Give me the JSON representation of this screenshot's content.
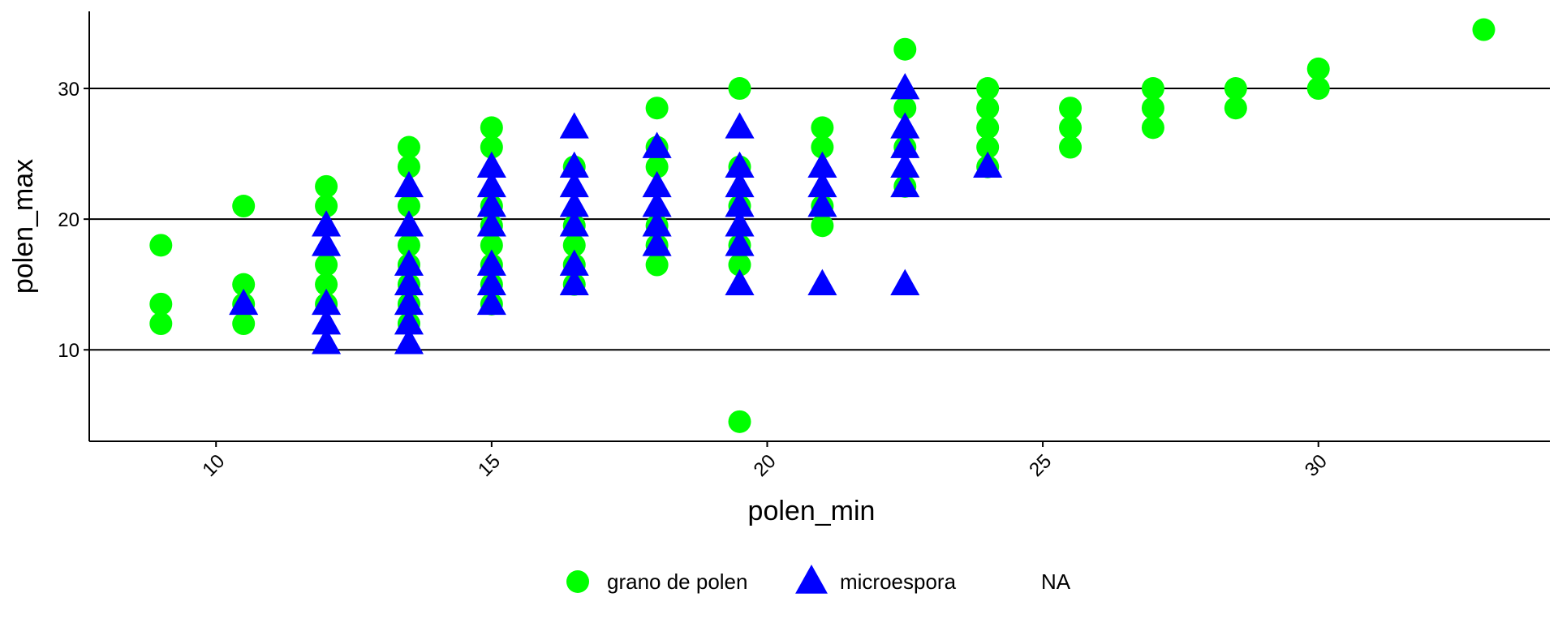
{
  "chart_data": {
    "type": "scatter",
    "title": "",
    "xlabel": "polen_min",
    "ylabel": "polen_max",
    "xlim": [
      7.7,
      34.2
    ],
    "ylim": [
      3.0,
      35.9
    ],
    "xticks": [
      10,
      15,
      20,
      25,
      30
    ],
    "yticks": [
      10,
      20,
      30
    ],
    "grid": "horizontal-major",
    "legend": "bottom",
    "series": [
      {
        "name": "grano de polen",
        "marker": "circle",
        "color": "#00FF00",
        "points": [
          [
            9,
            18
          ],
          [
            9,
            13.5
          ],
          [
            9,
            12
          ],
          [
            10.5,
            21
          ],
          [
            10.5,
            15
          ],
          [
            10.5,
            13.5
          ],
          [
            10.5,
            12
          ],
          [
            12,
            22.5
          ],
          [
            12,
            21
          ],
          [
            12,
            16.5
          ],
          [
            12,
            15
          ],
          [
            12,
            13.5
          ],
          [
            13.5,
            25.5
          ],
          [
            13.5,
            24
          ],
          [
            13.5,
            21
          ],
          [
            13.5,
            18
          ],
          [
            13.5,
            16.5
          ],
          [
            13.5,
            15
          ],
          [
            13.5,
            13.5
          ],
          [
            13.5,
            12
          ],
          [
            15,
            27
          ],
          [
            15,
            25.5
          ],
          [
            15,
            21
          ],
          [
            15,
            19.5
          ],
          [
            15,
            18
          ],
          [
            15,
            16.5
          ],
          [
            15,
            15
          ],
          [
            15,
            13.5
          ],
          [
            16.5,
            24
          ],
          [
            16.5,
            19.5
          ],
          [
            16.5,
            18
          ],
          [
            16.5,
            16.5
          ],
          [
            16.5,
            15
          ],
          [
            18,
            28.5
          ],
          [
            18,
            25.5
          ],
          [
            18,
            24
          ],
          [
            18,
            19.5
          ],
          [
            18,
            18
          ],
          [
            18,
            16.5
          ],
          [
            19.5,
            30
          ],
          [
            19.5,
            24
          ],
          [
            19.5,
            21
          ],
          [
            19.5,
            18
          ],
          [
            19.5,
            16.5
          ],
          [
            19.5,
            4.5
          ],
          [
            21,
            27
          ],
          [
            21,
            25.5
          ],
          [
            21,
            21
          ],
          [
            21,
            19.5
          ],
          [
            22.5,
            33
          ],
          [
            22.5,
            28.5
          ],
          [
            22.5,
            25.5
          ],
          [
            22.5,
            22.5
          ],
          [
            24,
            30
          ],
          [
            24,
            28.5
          ],
          [
            24,
            27
          ],
          [
            24,
            25.5
          ],
          [
            24,
            24
          ],
          [
            25.5,
            28.5
          ],
          [
            25.5,
            27
          ],
          [
            25.5,
            25.5
          ],
          [
            27,
            30
          ],
          [
            27,
            28.5
          ],
          [
            27,
            27
          ],
          [
            28.5,
            30
          ],
          [
            28.5,
            28.5
          ],
          [
            30,
            31.5
          ],
          [
            30,
            30
          ],
          [
            33,
            34.5
          ]
        ]
      },
      {
        "name": "microespora",
        "marker": "triangle",
        "color": "#0000FF",
        "points": [
          [
            10.5,
            13.5
          ],
          [
            12,
            19.5
          ],
          [
            12,
            18
          ],
          [
            12,
            13.5
          ],
          [
            12,
            12
          ],
          [
            12,
            10.5
          ],
          [
            13.5,
            22.5
          ],
          [
            13.5,
            19.5
          ],
          [
            13.5,
            16.5
          ],
          [
            13.5,
            15
          ],
          [
            13.5,
            13.5
          ],
          [
            13.5,
            12
          ],
          [
            13.5,
            10.5
          ],
          [
            15,
            24
          ],
          [
            15,
            22.5
          ],
          [
            15,
            21
          ],
          [
            15,
            19.5
          ],
          [
            15,
            16.5
          ],
          [
            15,
            15
          ],
          [
            15,
            13.5
          ],
          [
            16.5,
            27
          ],
          [
            16.5,
            24
          ],
          [
            16.5,
            22.5
          ],
          [
            16.5,
            21
          ],
          [
            16.5,
            19.5
          ],
          [
            16.5,
            16.5
          ],
          [
            16.5,
            15
          ],
          [
            18,
            25.5
          ],
          [
            18,
            22.5
          ],
          [
            18,
            21
          ],
          [
            18,
            19.5
          ],
          [
            18,
            18
          ],
          [
            19.5,
            27
          ],
          [
            19.5,
            24
          ],
          [
            19.5,
            22.5
          ],
          [
            19.5,
            21
          ],
          [
            19.5,
            19.5
          ],
          [
            19.5,
            18
          ],
          [
            19.5,
            15
          ],
          [
            21,
            24
          ],
          [
            21,
            22.5
          ],
          [
            21,
            21
          ],
          [
            21,
            15
          ],
          [
            22.5,
            30
          ],
          [
            22.5,
            27
          ],
          [
            22.5,
            25.5
          ],
          [
            22.5,
            24
          ],
          [
            22.5,
            22.5
          ],
          [
            22.5,
            15
          ],
          [
            24,
            24
          ]
        ]
      }
    ],
    "legend_entries": [
      "grano de polen",
      "microespora",
      "NA"
    ]
  }
}
